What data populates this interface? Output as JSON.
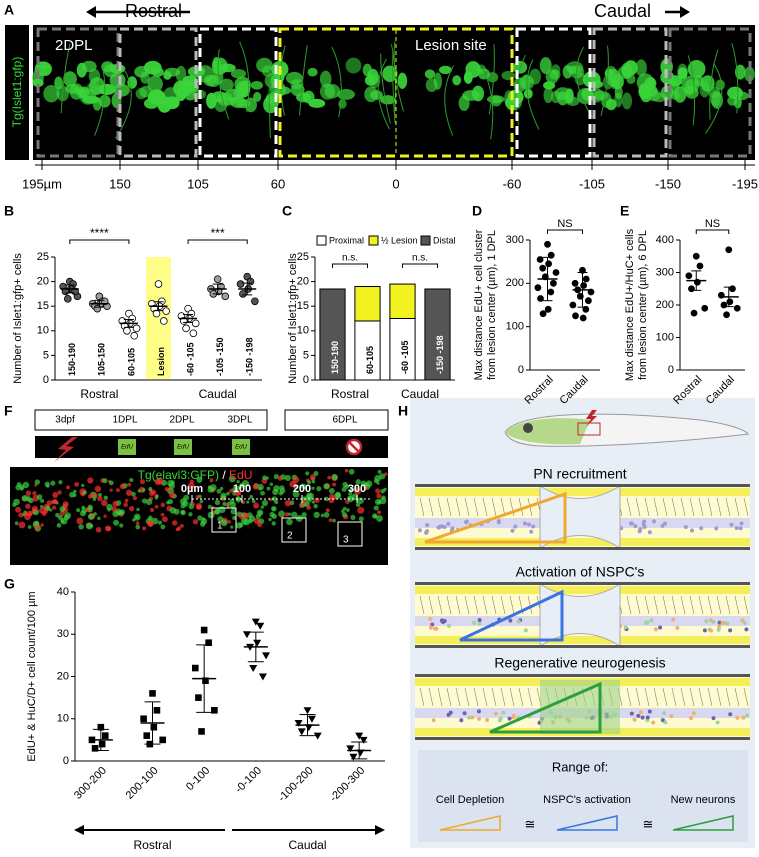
{
  "panel_a": {
    "label": "A",
    "rostral": "Rostral",
    "caudal": "Caudal",
    "side_label": "Tg(Islet1:gfp)",
    "timepoint": "2DPL",
    "lesion": "Lesion site",
    "axis_ticks": [
      "195µm",
      "150",
      "105",
      "60",
      "0",
      "-60",
      "-105",
      "-150",
      "-195"
    ]
  },
  "chart_data": [
    {
      "panel": "B",
      "type": "dotplot",
      "ylabel": [
        "Number of Islet1:gfp+ cells"
      ],
      "categories": [
        "150-190",
        "105-150",
        "60-105",
        "Lesion",
        "-60 -105",
        "-105 -150",
        "-150 -198"
      ],
      "values": [
        18.5,
        15.5,
        11.5,
        15,
        12.5,
        18.5,
        18.5
      ],
      "errors": [
        0.8,
        0.7,
        0.8,
        0.9,
        0.8,
        1,
        1.2
      ],
      "points": [
        [
          20,
          19.5,
          19,
          18.5,
          18,
          17,
          16.5,
          18
        ],
        [
          17,
          16,
          15.5,
          15.5,
          15,
          15,
          14.5,
          16
        ],
        [
          13.5,
          12.5,
          12,
          11.5,
          11,
          10.5,
          10,
          9
        ],
        [
          19.5,
          16,
          15.5,
          15,
          14.5,
          14,
          13.5,
          12
        ],
        [
          14.5,
          13.5,
          13,
          12.5,
          12,
          11.5,
          10.5,
          9.5
        ],
        [
          20.5,
          19,
          18.5,
          18,
          17.5,
          17
        ],
        [
          21,
          20,
          19.5,
          18.5,
          17.5,
          16
        ]
      ],
      "colors": [
        "#555555",
        "#a0a0a0",
        "#ffffff",
        "#ffffff",
        "#ffffff",
        "#a0a0a0",
        "#555555"
      ],
      "highlight_color": "#ffff88",
      "groups": [
        "Rostral",
        "Caudal"
      ],
      "annotations": [
        "****",
        "***"
      ],
      "ylim": [
        0,
        25
      ],
      "yticks": [
        0,
        5,
        10,
        15,
        20,
        25
      ]
    },
    {
      "panel": "C",
      "type": "stacked_bar",
      "ylabel": [
        "Number of Islet1:gfp+ cells"
      ],
      "categories": [
        "150-190",
        "60-105",
        "-60 -105",
        "-150 -198"
      ],
      "series": [
        {
          "name": "Proximal",
          "color": "#ffffff",
          "values": [
            null,
            12,
            12.5,
            null
          ]
        },
        {
          "name": "½ Lesion",
          "color": "#f2f220",
          "values": [
            null,
            7,
            7,
            null
          ]
        },
        {
          "name": "Distal",
          "color": "#555555",
          "values": [
            18.5,
            null,
            null,
            18.5
          ]
        }
      ],
      "groups": [
        "Rostral",
        "Caudal"
      ],
      "annotations": [
        "n.s.",
        "n.s."
      ],
      "ylim": [
        0,
        25
      ],
      "yticks": [
        0,
        5,
        10,
        15,
        20,
        25
      ]
    },
    {
      "panel": "D",
      "type": "dotplot",
      "ylabel": [
        "Max distance EdU+ cell cluster",
        "from lesion center (µm), 1 DPL"
      ],
      "categories": [
        "Rostral",
        "Caudal"
      ],
      "values": [
        210,
        185
      ],
      "errors": [
        50,
        40
      ],
      "points": [
        [
          290,
          265,
          255,
          245,
          235,
          225,
          215,
          200,
          190,
          180,
          165,
          140,
          130
        ],
        [
          230,
          210,
          200,
          195,
          185,
          180,
          170,
          160,
          150,
          140,
          125,
          120
        ]
      ],
      "colors": [
        "#000000",
        "#000000"
      ],
      "annotations": [
        "NS"
      ],
      "ylim": [
        0,
        300
      ],
      "yticks": [
        0,
        100,
        200,
        300
      ]
    },
    {
      "panel": "E",
      "type": "dotplot",
      "ylabel": [
        "Max distance EdU+/HuC+ cells",
        "from lesion center (µm), 6 DPL"
      ],
      "categories": [
        "Rostral",
        "Caudal"
      ],
      "values": [
        275,
        225
      ],
      "errors": [
        30,
        30
      ],
      "points": [
        [
          350,
          320,
          290,
          270,
          250,
          190,
          175
        ],
        [
          370,
          250,
          230,
          210,
          200,
          190,
          170
        ]
      ],
      "colors": [
        "#000000",
        "#000000"
      ],
      "annotations": [
        "NS"
      ],
      "ylim": [
        0,
        400
      ],
      "yticks": [
        0,
        100,
        200,
        300,
        400
      ]
    },
    {
      "panel": "G",
      "type": "dotplot",
      "ylabel": [
        "EdU+ & HuC/D+ cell count/100 µm"
      ],
      "categories": [
        "300-200",
        "200-100",
        "0-100",
        "-0-100",
        "-100-200",
        "-200-300"
      ],
      "values": [
        5,
        9,
        19.5,
        27,
        8.5,
        2.5
      ],
      "errors": [
        2.5,
        5,
        8,
        3.5,
        2.5,
        2
      ],
      "points": [
        [
          8,
          6,
          5,
          4,
          3
        ],
        [
          16,
          12,
          10,
          8,
          6,
          5,
          4
        ],
        [
          31,
          28,
          22,
          19,
          15,
          12,
          7
        ],
        [
          33,
          32,
          30,
          28,
          27,
          25,
          22,
          20
        ],
        [
          12,
          10,
          9,
          8,
          7,
          6
        ],
        [
          6,
          5,
          3,
          2,
          1
        ]
      ],
      "colors": [
        "#000000",
        "#000000",
        "#000000",
        "#000000",
        "#000000",
        "#000000"
      ],
      "groups": [
        "Rostral",
        "Caudal"
      ],
      "ylim": [
        0,
        40
      ],
      "yticks": [
        0,
        10,
        20,
        30,
        40
      ]
    }
  ],
  "panel_f": {
    "label": "F",
    "timeline": [
      "3dpf",
      "1DPL",
      "2DPL",
      "3DPL",
      "6DPL"
    ],
    "lesion": "lesion",
    "edu_marks": [
      "EdU",
      "EdU",
      "EdU"
    ],
    "title_green": "Tg(elavl3:GFP)",
    "title_sep": " / ",
    "title_red": "EdU",
    "scale": [
      "0µm",
      "100",
      "200",
      "300"
    ],
    "boxes": [
      "1",
      "2",
      "3"
    ]
  },
  "panel_h": {
    "label": "H",
    "steps": [
      "PN recruitment",
      "Activation of NSPC's",
      "Regenerative neurogenesis"
    ],
    "range_title": "Range of:",
    "ranges": [
      "Cell Depletion",
      "NSPC's activation",
      "New neurons"
    ],
    "approx": "≅"
  }
}
